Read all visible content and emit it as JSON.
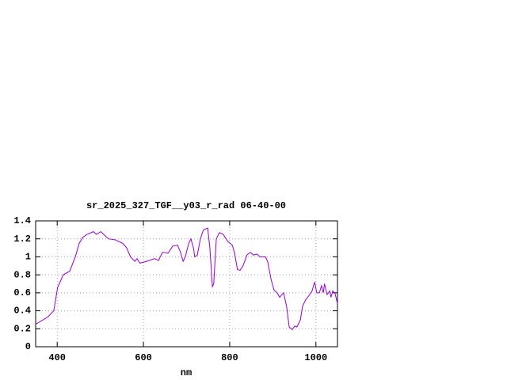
{
  "chart_data": {
    "type": "line",
    "title": "sr_2025_327_TGF__y03_r_rad 06-40-00",
    "x_label": "nm",
    "x": [
      350,
      378,
      392,
      401,
      414,
      429,
      442,
      451,
      460,
      469,
      484,
      491,
      501,
      510,
      519,
      534,
      552,
      561,
      570,
      580,
      585,
      592,
      607,
      626,
      635,
      644,
      657,
      668,
      679,
      686,
      692,
      697,
      705,
      710,
      716,
      719,
      725,
      732,
      739,
      749,
      754,
      760,
      763,
      769,
      776,
      785,
      796,
      806,
      811,
      818,
      824,
      831,
      840,
      848,
      855,
      864,
      870,
      883,
      888,
      896,
      903,
      910,
      916,
      925,
      932,
      938,
      945,
      951,
      956,
      964,
      969,
      976,
      984,
      991,
      997,
      1002,
      1008,
      1013,
      1017,
      1020,
      1026,
      1032,
      1035,
      1039,
      1044,
      1050
    ],
    "values": [
      0.25,
      0.33,
      0.4,
      0.66,
      0.8,
      0.84,
      1.0,
      1.15,
      1.22,
      1.25,
      1.28,
      1.25,
      1.28,
      1.24,
      1.2,
      1.19,
      1.15,
      1.1,
      1.0,
      0.95,
      0.98,
      0.93,
      0.95,
      0.98,
      0.96,
      1.05,
      1.04,
      1.12,
      1.13,
      1.05,
      0.95,
      1.0,
      1.15,
      1.2,
      1.1,
      1.0,
      1.02,
      1.2,
      1.3,
      1.32,
      1.1,
      0.67,
      0.7,
      1.2,
      1.27,
      1.25,
      1.17,
      1.13,
      1.05,
      0.86,
      0.85,
      0.9,
      1.02,
      1.05,
      1.02,
      1.03,
      1.0,
      1.0,
      0.95,
      0.75,
      0.63,
      0.6,
      0.55,
      0.6,
      0.45,
      0.22,
      0.19,
      0.23,
      0.22,
      0.3,
      0.45,
      0.52,
      0.57,
      0.62,
      0.72,
      0.6,
      0.6,
      0.68,
      0.6,
      0.7,
      0.58,
      0.62,
      0.55,
      0.62,
      0.6,
      0.48
    ],
    "color": "#9400d3",
    "xlim": [
      350,
      1050
    ],
    "xticks": [
      400,
      600,
      800,
      1000
    ],
    "ylim": [
      0,
      1.4
    ],
    "yticks": [
      0,
      0.2,
      0.4,
      0.6,
      0.8,
      1,
      1.2,
      1.4
    ],
    "grid": true
  }
}
